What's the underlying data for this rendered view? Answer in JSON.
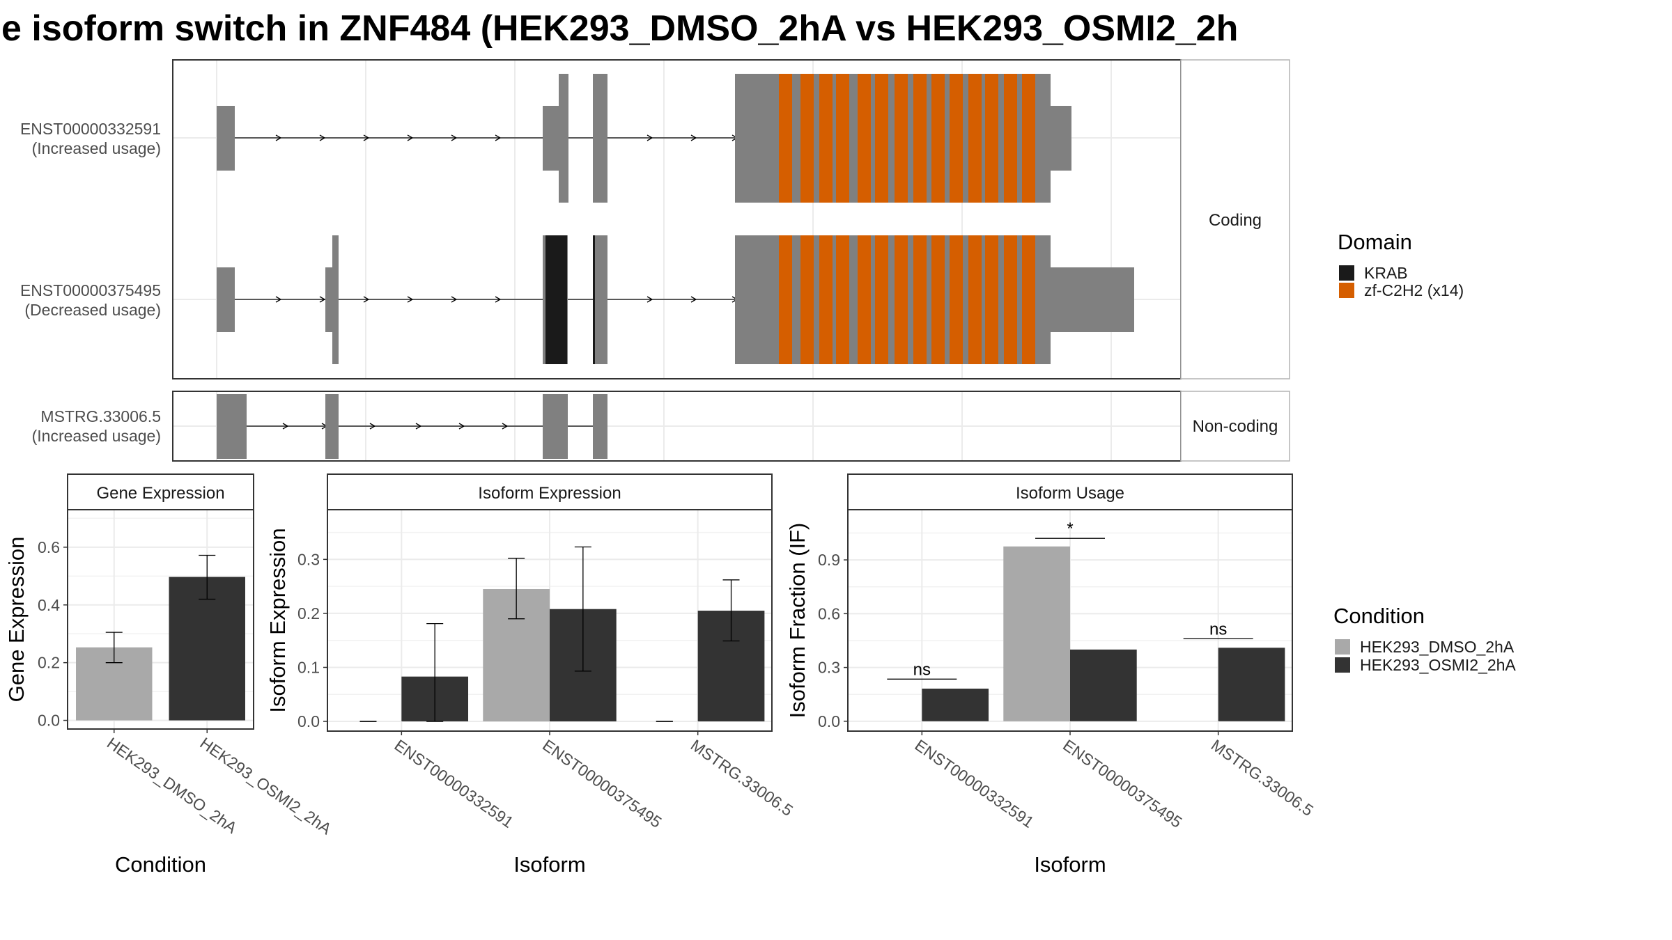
{
  "title": "e isoform switch in ZNF484 (HEK293_DMSO_2hA vs HEK293_OSMI2_2h",
  "colors": {
    "exon": "#808080",
    "krab": "#1a1a1a",
    "zf": "#d55e00",
    "dmso": "#a9a9a9",
    "osmi": "#333333",
    "grid": "#ebebeb",
    "frame": "#333333"
  },
  "structure": {
    "coding_label": "Coding",
    "noncoding_label": "Non-coding",
    "isoforms": [
      {
        "id": "ENST00000332591",
        "usage": "(Increased usage)"
      },
      {
        "id": "ENST00000375495",
        "usage": "(Decreased usage)"
      },
      {
        "id": "MSTRG.33006.5",
        "usage": "(Increased usage)"
      }
    ],
    "legend_title": "Domain",
    "domains": [
      {
        "name": "KRAB",
        "color": "#1a1a1a"
      },
      {
        "name": "zf-C2H2 (x14)",
        "color": "#d55e00"
      }
    ]
  },
  "condition_legend": {
    "title": "Condition",
    "items": [
      {
        "name": "HEK293_DMSO_2hA",
        "color": "#a9a9a9"
      },
      {
        "name": "HEK293_OSMI2_2hA",
        "color": "#333333"
      }
    ]
  },
  "chart_data": [
    {
      "type": "bar",
      "strip": "Gene Expression",
      "xlabel": "Condition",
      "ylabel": "Gene Expression",
      "ylim": [
        -0.03,
        0.73
      ],
      "yticks": [
        "0.0",
        "0.2",
        "0.4",
        "0.6"
      ],
      "ytick_values": [
        0,
        0.2,
        0.4,
        0.6
      ],
      "categories": [
        "HEK293_DMSO_2hA",
        "HEK293_OSMI2_2hA"
      ],
      "series": [
        {
          "name": "HEK293_DMSO_2hA",
          "values": [
            0.253,
            null
          ],
          "err_low": [
            0.2,
            null
          ],
          "err_high": [
            0.305,
            null
          ]
        },
        {
          "name": "HEK293_OSMI2_2hA",
          "values": [
            null,
            0.497
          ],
          "err_low": [
            null,
            0.42
          ],
          "err_high": [
            null,
            0.572
          ]
        }
      ]
    },
    {
      "type": "bar",
      "strip": "Isoform Expression",
      "xlabel": "Isoform",
      "ylabel": "Isoform Expression",
      "ylim": [
        -0.018,
        0.392
      ],
      "yticks": [
        "0.0",
        "0.1",
        "0.2",
        "0.3"
      ],
      "ytick_values": [
        0,
        0.1,
        0.2,
        0.3
      ],
      "categories": [
        "ENST00000332591",
        "ENST00000375495",
        "MSTRG.33006.5"
      ],
      "series": [
        {
          "name": "HEK293_DMSO_2hA",
          "values": [
            0.0,
            0.245,
            0.0
          ],
          "err_low": [
            0.0,
            0.19,
            0.0
          ],
          "err_high": [
            0.0,
            0.302,
            0.0
          ]
        },
        {
          "name": "HEK293_OSMI2_2hA",
          "values": [
            0.083,
            0.208,
            0.205
          ],
          "err_low": [
            0.0,
            0.093,
            0.149
          ],
          "err_high": [
            0.181,
            0.323,
            0.262
          ]
        }
      ]
    },
    {
      "type": "bar",
      "strip": "Isoform Usage",
      "xlabel": "Isoform",
      "ylabel": "Isoform Fraction (IF)",
      "ylim": [
        -0.055,
        1.18
      ],
      "yticks": [
        "0.0",
        "0.3",
        "0.6",
        "0.9"
      ],
      "ytick_values": [
        0,
        0.3,
        0.6,
        0.9
      ],
      "categories": [
        "ENST00000332591",
        "ENST00000375495",
        "MSTRG.33006.5"
      ],
      "series": [
        {
          "name": "HEK293_DMSO_2hA",
          "values": [
            0.0,
            0.975,
            0.0
          ]
        },
        {
          "name": "HEK293_OSMI2_2hA",
          "values": [
            0.182,
            0.4,
            0.41
          ]
        }
      ],
      "significance": [
        {
          "label": "ns",
          "y": 0.235
        },
        {
          "label": "*",
          "y": 1.02
        },
        {
          "label": "ns",
          "y": 0.46
        }
      ]
    }
  ]
}
